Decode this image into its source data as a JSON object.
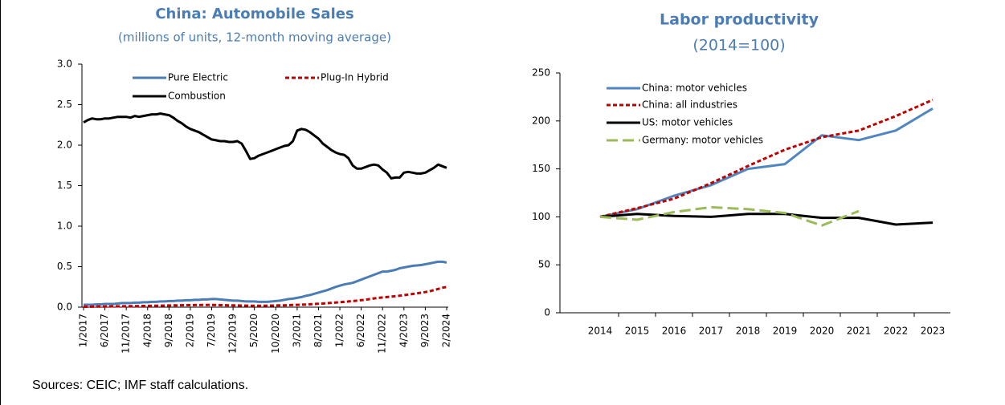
{
  "chart_data": [
    {
      "type": "line",
      "title": "China: Automobile Sales",
      "subtitle": "(millions of units, 12-month moving average)",
      "categories": [
        "1/2017",
        null,
        null,
        null,
        null,
        "6/2017",
        null,
        null,
        null,
        null,
        "11/2017",
        null,
        null,
        null,
        null,
        "4/2018",
        null,
        null,
        null,
        null,
        "9/2018",
        null,
        null,
        null,
        null,
        "2/2019",
        null,
        null,
        null,
        null,
        "7/2019",
        null,
        null,
        null,
        null,
        "12/2019",
        null,
        null,
        null,
        null,
        "5/2020",
        null,
        null,
        null,
        null,
        "10/2020",
        null,
        null,
        null,
        null,
        "3/2021",
        null,
        null,
        null,
        null,
        "8/2021",
        null,
        null,
        null,
        null,
        "1/2022",
        null,
        null,
        null,
        null,
        "6/2022",
        null,
        null,
        null,
        null,
        "11/2022",
        null,
        null,
        null,
        null,
        "4/2023",
        null,
        null,
        null,
        null,
        "9/2023",
        null,
        null,
        null,
        null,
        "2/2024"
      ],
      "series": [
        {
          "name": "Pure Electric",
          "color": "#4a7db5",
          "style": "solid",
          "values": [
            0.03,
            0.03,
            0.03,
            0.035,
            0.035,
            0.04,
            0.04,
            0.04,
            0.045,
            0.05,
            0.05,
            0.05,
            0.055,
            0.055,
            0.06,
            0.06,
            0.065,
            0.065,
            0.07,
            0.07,
            0.075,
            0.075,
            0.08,
            0.08,
            0.085,
            0.085,
            0.09,
            0.09,
            0.095,
            0.095,
            0.1,
            0.1,
            0.095,
            0.09,
            0.085,
            0.08,
            0.08,
            0.075,
            0.07,
            0.07,
            0.07,
            0.065,
            0.065,
            0.065,
            0.07,
            0.075,
            0.08,
            0.09,
            0.1,
            0.105,
            0.115,
            0.125,
            0.14,
            0.15,
            0.165,
            0.18,
            0.195,
            0.21,
            0.23,
            0.25,
            0.265,
            0.28,
            0.29,
            0.3,
            0.32,
            0.34,
            0.36,
            0.38,
            0.4,
            0.42,
            0.44,
            0.44,
            0.45,
            0.46,
            0.48,
            0.49,
            0.5,
            0.51,
            0.515,
            0.52,
            0.53,
            0.54,
            0.55,
            0.56,
            0.56,
            0.55
          ]
        },
        {
          "name": "Plug-In Hybrid",
          "color": "#c00000",
          "style": "dashed",
          "values": [
            0.005,
            0.005,
            0.006,
            0.007,
            0.008,
            0.008,
            0.009,
            0.01,
            0.01,
            0.011,
            0.012,
            0.012,
            0.013,
            0.014,
            0.015,
            0.016,
            0.017,
            0.018,
            0.019,
            0.02,
            0.021,
            0.022,
            0.023,
            0.024,
            0.025,
            0.025,
            0.026,
            0.026,
            0.027,
            0.027,
            0.027,
            0.026,
            0.025,
            0.024,
            0.023,
            0.022,
            0.021,
            0.02,
            0.019,
            0.018,
            0.018,
            0.018,
            0.018,
            0.019,
            0.02,
            0.021,
            0.022,
            0.023,
            0.025,
            0.027,
            0.029,
            0.031,
            0.033,
            0.036,
            0.039,
            0.042,
            0.045,
            0.049,
            0.053,
            0.057,
            0.061,
            0.065,
            0.07,
            0.075,
            0.08,
            0.086,
            0.092,
            0.1,
            0.108,
            0.115,
            0.12,
            0.125,
            0.13,
            0.136,
            0.142,
            0.148,
            0.155,
            0.162,
            0.17,
            0.178,
            0.186,
            0.195,
            0.21,
            0.225,
            0.24,
            0.25
          ]
        },
        {
          "name": "Combustion",
          "color": "#000000",
          "style": "solid",
          "values": [
            2.28,
            2.31,
            2.33,
            2.32,
            2.32,
            2.33,
            2.33,
            2.34,
            2.35,
            2.35,
            2.35,
            2.34,
            2.36,
            2.35,
            2.36,
            2.37,
            2.38,
            2.38,
            2.39,
            2.38,
            2.37,
            2.34,
            2.3,
            2.27,
            2.23,
            2.2,
            2.18,
            2.16,
            2.13,
            2.1,
            2.07,
            2.06,
            2.05,
            2.05,
            2.04,
            2.04,
            2.05,
            2.02,
            1.93,
            1.83,
            1.84,
            1.87,
            1.89,
            1.91,
            1.93,
            1.95,
            1.97,
            1.99,
            2.0,
            2.05,
            2.18,
            2.2,
            2.19,
            2.16,
            2.12,
            2.08,
            2.02,
            1.98,
            1.94,
            1.91,
            1.89,
            1.88,
            1.84,
            1.75,
            1.71,
            1.71,
            1.73,
            1.75,
            1.76,
            1.75,
            1.7,
            1.66,
            1.59,
            1.6,
            1.6,
            1.66,
            1.67,
            1.66,
            1.65,
            1.65,
            1.66,
            1.69,
            1.72,
            1.76,
            1.74,
            1.72
          ]
        }
      ],
      "ylim": [
        0,
        3
      ],
      "yticks": [
        {
          "value": 0,
          "label": "0.0"
        },
        {
          "value": 0.5,
          "label": "0.5"
        },
        {
          "value": 1,
          "label": "1.0"
        },
        {
          "value": 1.5,
          "label": "1.5"
        },
        {
          "value": 2,
          "label": "2.0"
        },
        {
          "value": 2.5,
          "label": "2.5"
        },
        {
          "value": 3,
          "label": "3.0"
        }
      ],
      "grid": false
    },
    {
      "type": "line",
      "title": "Labor productivity",
      "subtitle": "(2014=100)",
      "categories": [
        "2014",
        "2015",
        "2016",
        "2017",
        "2018",
        "2019",
        "2020",
        "2021",
        "2022",
        "2023"
      ],
      "series": [
        {
          "name": "China: motor vehicles",
          "color": "#4f86c0",
          "style": "solid",
          "values": [
            100,
            108,
            122,
            133,
            150,
            155,
            185,
            180,
            190,
            213
          ]
        },
        {
          "name": "China: all industries",
          "color": "#c00000",
          "style": "dashed",
          "values": [
            100,
            109,
            119,
            135,
            153,
            170,
            183,
            190,
            205,
            222
          ]
        },
        {
          "name": "US: motor vehicles",
          "color": "#000000",
          "style": "solid",
          "values": [
            100,
            103,
            101,
            100,
            103,
            103,
            99,
            99,
            92,
            94
          ]
        },
        {
          "name": "Germany: motor vehicles",
          "color": "#9bbb59",
          "style": "longdash",
          "values": [
            100,
            97,
            105,
            110,
            108,
            104,
            91,
            106,
            null,
            null
          ]
        }
      ],
      "ylim": [
        0,
        250
      ],
      "yticks": [
        0,
        50,
        100,
        150,
        200,
        250
      ],
      "grid": false
    }
  ],
  "source": "Sources: CEIC; IMF staff calculations."
}
